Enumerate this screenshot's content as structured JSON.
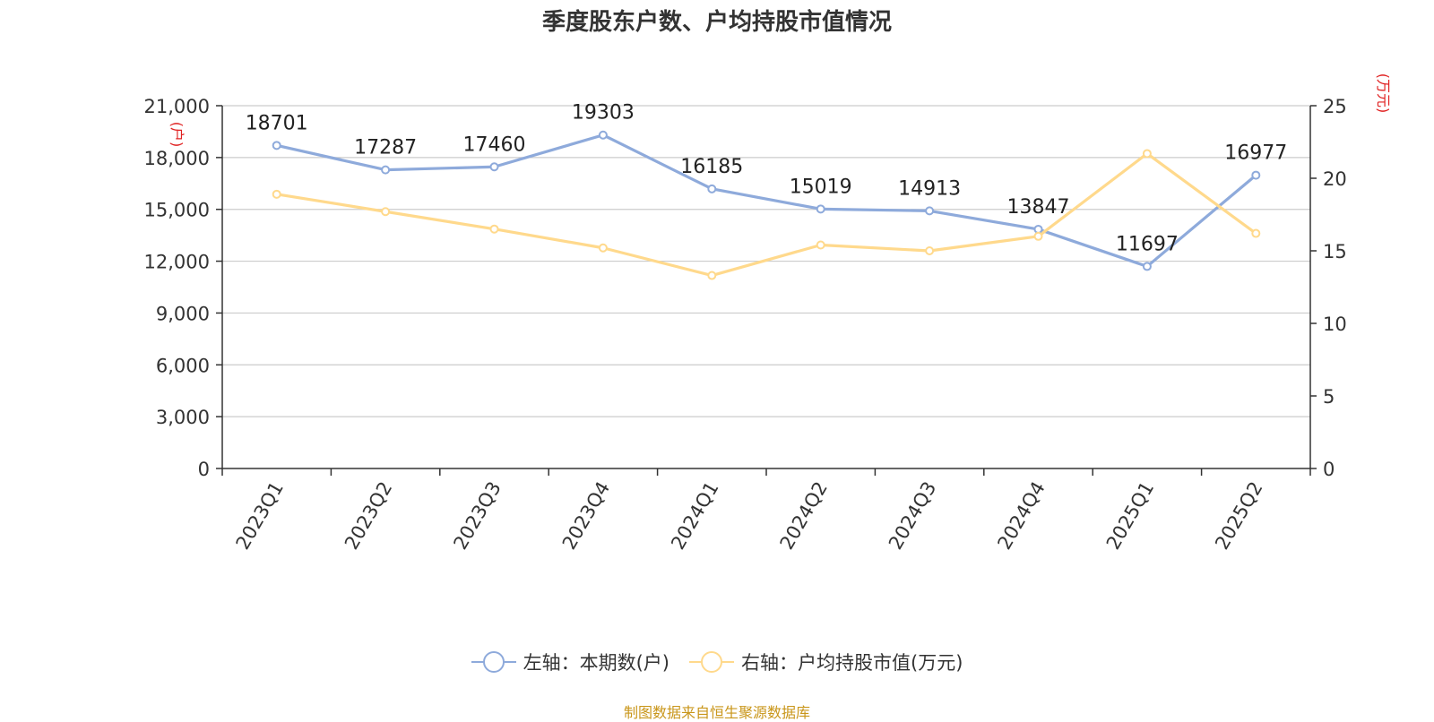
{
  "title": "季度股东户数、户均持股市值情况",
  "source": "制图数据来自恒生聚源数据库",
  "colors": {
    "left_series": "#8eaadb",
    "right_series": "#ffd98c",
    "axis_unit": "#e02020"
  },
  "chart_data": {
    "type": "line",
    "title": "季度股东户数、户均持股市值情况",
    "categories": [
      "2023Q1",
      "2023Q2",
      "2023Q3",
      "2023Q4",
      "2024Q1",
      "2024Q2",
      "2024Q3",
      "2024Q4",
      "2025Q1",
      "2025Q2"
    ],
    "y_left": {
      "label": "(户)",
      "min": 0,
      "max": 21000,
      "ticks": [
        "0",
        "3,000",
        "6,000",
        "9,000",
        "12,000",
        "15,000",
        "18,000",
        "21,000"
      ]
    },
    "y_right": {
      "label": "(万元)",
      "min": 0,
      "max": 25,
      "ticks": [
        "0",
        "5",
        "10",
        "15",
        "20",
        "25"
      ]
    },
    "grid": true,
    "legend_position": "bottom",
    "series": [
      {
        "name": "左轴：本期数(户)",
        "axis": "left",
        "color": "#8eaadb",
        "values": [
          18701,
          17287,
          17460,
          19303,
          16185,
          15019,
          14913,
          13847,
          11697,
          16977
        ],
        "labels": [
          "18701",
          "17287",
          "17460",
          "19303",
          "16185",
          "15019",
          "14913",
          "13847",
          "11697",
          "16977"
        ]
      },
      {
        "name": "右轴：户均持股市值(万元)",
        "axis": "right",
        "color": "#ffd98c",
        "values": [
          18.9,
          17.7,
          16.5,
          15.2,
          13.3,
          15.4,
          15.0,
          16.0,
          21.7,
          16.2
        ]
      }
    ]
  }
}
